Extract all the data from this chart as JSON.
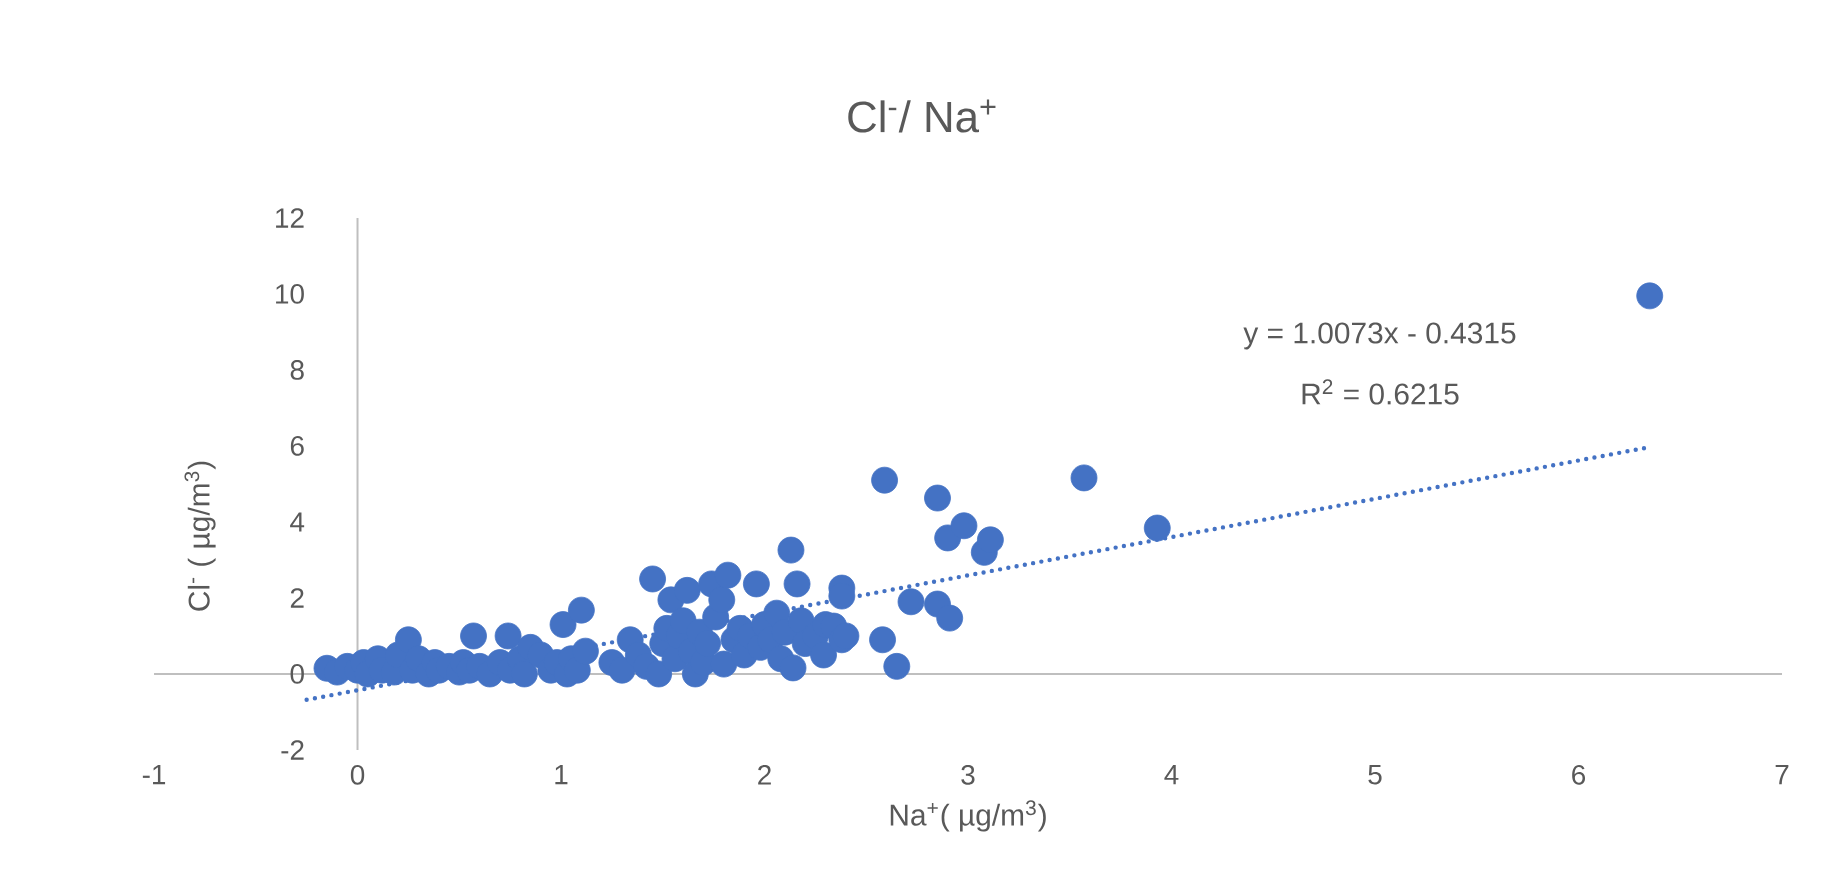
{
  "chart_data": {
    "type": "scatter",
    "title": "Cl$^{-}$/ Na$^{+}$",
    "xlabel": "Na$^{+}$( µg/m$^{3}$)",
    "ylabel": "Cl$^{-}$ ( µg/m$^{3}$)",
    "xlim": [
      -1,
      7
    ],
    "xticks": [
      -1,
      0,
      1,
      2,
      3,
      4,
      5,
      6,
      7
    ],
    "ylim": [
      -2,
      12
    ],
    "yticks": [
      -2,
      0,
      2,
      4,
      6,
      8,
      10,
      12
    ],
    "annotations": [
      "y = 1.0073x - 0.4315",
      "R$^{2}$ = 0.6215"
    ],
    "series": [
      {
        "type": "scatter",
        "color": "#4472c4",
        "marker": "circle",
        "x": [
          -0.15,
          -0.1,
          -0.05,
          0,
          0.03,
          0.05,
          0.1,
          0.12,
          0.18,
          0.2,
          0.25,
          0.27,
          0.3,
          0.35,
          0.38,
          0.4,
          0.45,
          0.5,
          0.52,
          0.55,
          0.57,
          0.6,
          0.65,
          0.7,
          0.74,
          0.75,
          0.8,
          0.82,
          0.85,
          0.9,
          0.95,
          0.98,
          1.01,
          1.03,
          1.05,
          1.08,
          1.1,
          1.12,
          1.25,
          1.3,
          1.34,
          1.38,
          1.42,
          1.45,
          1.48,
          1.5,
          1.52,
          1.54,
          1.56,
          1.58,
          1.6,
          1.62,
          1.64,
          1.66,
          1.68,
          1.7,
          1.72,
          1.74,
          1.76,
          1.79,
          1.8,
          1.82,
          1.85,
          1.88,
          1.9,
          1.93,
          1.96,
          1.98,
          2.0,
          2.03,
          2.06,
          2.08,
          2.1,
          2.13,
          2.14,
          2.16,
          2.18,
          2.2,
          2.25,
          2.29,
          2.3,
          2.34,
          2.38,
          2.38,
          2.38,
          2.4,
          2.58,
          2.59,
          2.65,
          2.72,
          2.85,
          2.85,
          2.9,
          2.91,
          2.98,
          3.08,
          3.11,
          3.57,
          3.93,
          6.35
        ],
        "values": [
          0.15,
          0.05,
          0.2,
          0.1,
          0.3,
          0.0,
          0.4,
          0.1,
          0.05,
          0.5,
          0.9,
          0.1,
          0.4,
          0.0,
          0.3,
          0.1,
          0.2,
          0.05,
          0.3,
          0.1,
          1.0,
          0.2,
          0.0,
          0.3,
          1.0,
          0.1,
          0.4,
          0.0,
          0.7,
          0.5,
          0.1,
          0.3,
          1.3,
          0.0,
          0.4,
          0.1,
          1.68,
          0.6,
          0.3,
          0.1,
          0.9,
          0.5,
          0.2,
          2.5,
          0.0,
          0.8,
          1.2,
          1.95,
          0.4,
          1.0,
          1.4,
          2.2,
          0.6,
          0.0,
          1.1,
          0.3,
          0.8,
          2.37,
          1.5,
          1.95,
          0.26,
          2.6,
          0.9,
          1.2,
          0.5,
          1.0,
          2.37,
          0.7,
          1.3,
          0.9,
          1.6,
          0.4,
          1.1,
          3.26,
          0.16,
          2.37,
          1.4,
          0.8,
          1.0,
          0.5,
          1.3,
          1.26,
          2.26,
          2.05,
          0.9,
          1.0,
          0.9,
          5.1,
          0.2,
          1.9,
          4.63,
          1.84,
          3.58,
          1.47,
          3.9,
          3.2,
          3.53,
          5.16,
          3.84,
          9.95
        ]
      },
      {
        "type": "line",
        "color": "#4472c4",
        "marker": "none",
        "line_style": "dotted",
        "x": [
          -0.25,
          6.35
        ],
        "values": [
          -0.68,
          5.97
        ]
      }
    ]
  }
}
